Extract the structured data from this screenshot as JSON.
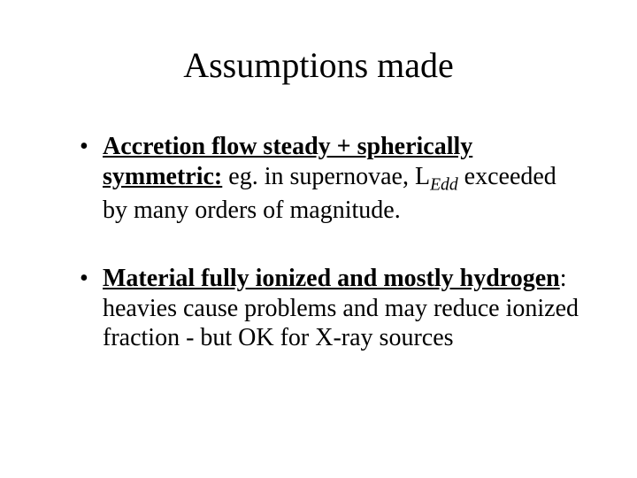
{
  "slide": {
    "title": "Assumptions made",
    "bullets": [
      {
        "lead": "Accretion flow steady + spherically symmetric:",
        "rest_before_sub": " eg. in supernovae, L",
        "sub": "Edd",
        "rest_after_sub": " exceeded by many orders of magnitude."
      },
      {
        "lead": "Material fully ionized and mostly hydrogen",
        "rest_before_sub": ": heavies cause problems and may reduce ionized fraction - but OK for X-ray sources",
        "sub": "",
        "rest_after_sub": ""
      }
    ]
  },
  "style": {
    "background_color": "#ffffff",
    "text_color": "#000000",
    "font_family": "Times New Roman",
    "title_fontsize": 40,
    "body_fontsize": 28,
    "title_weight": 400,
    "lead_weight": 700,
    "line_height": 1.2
  }
}
